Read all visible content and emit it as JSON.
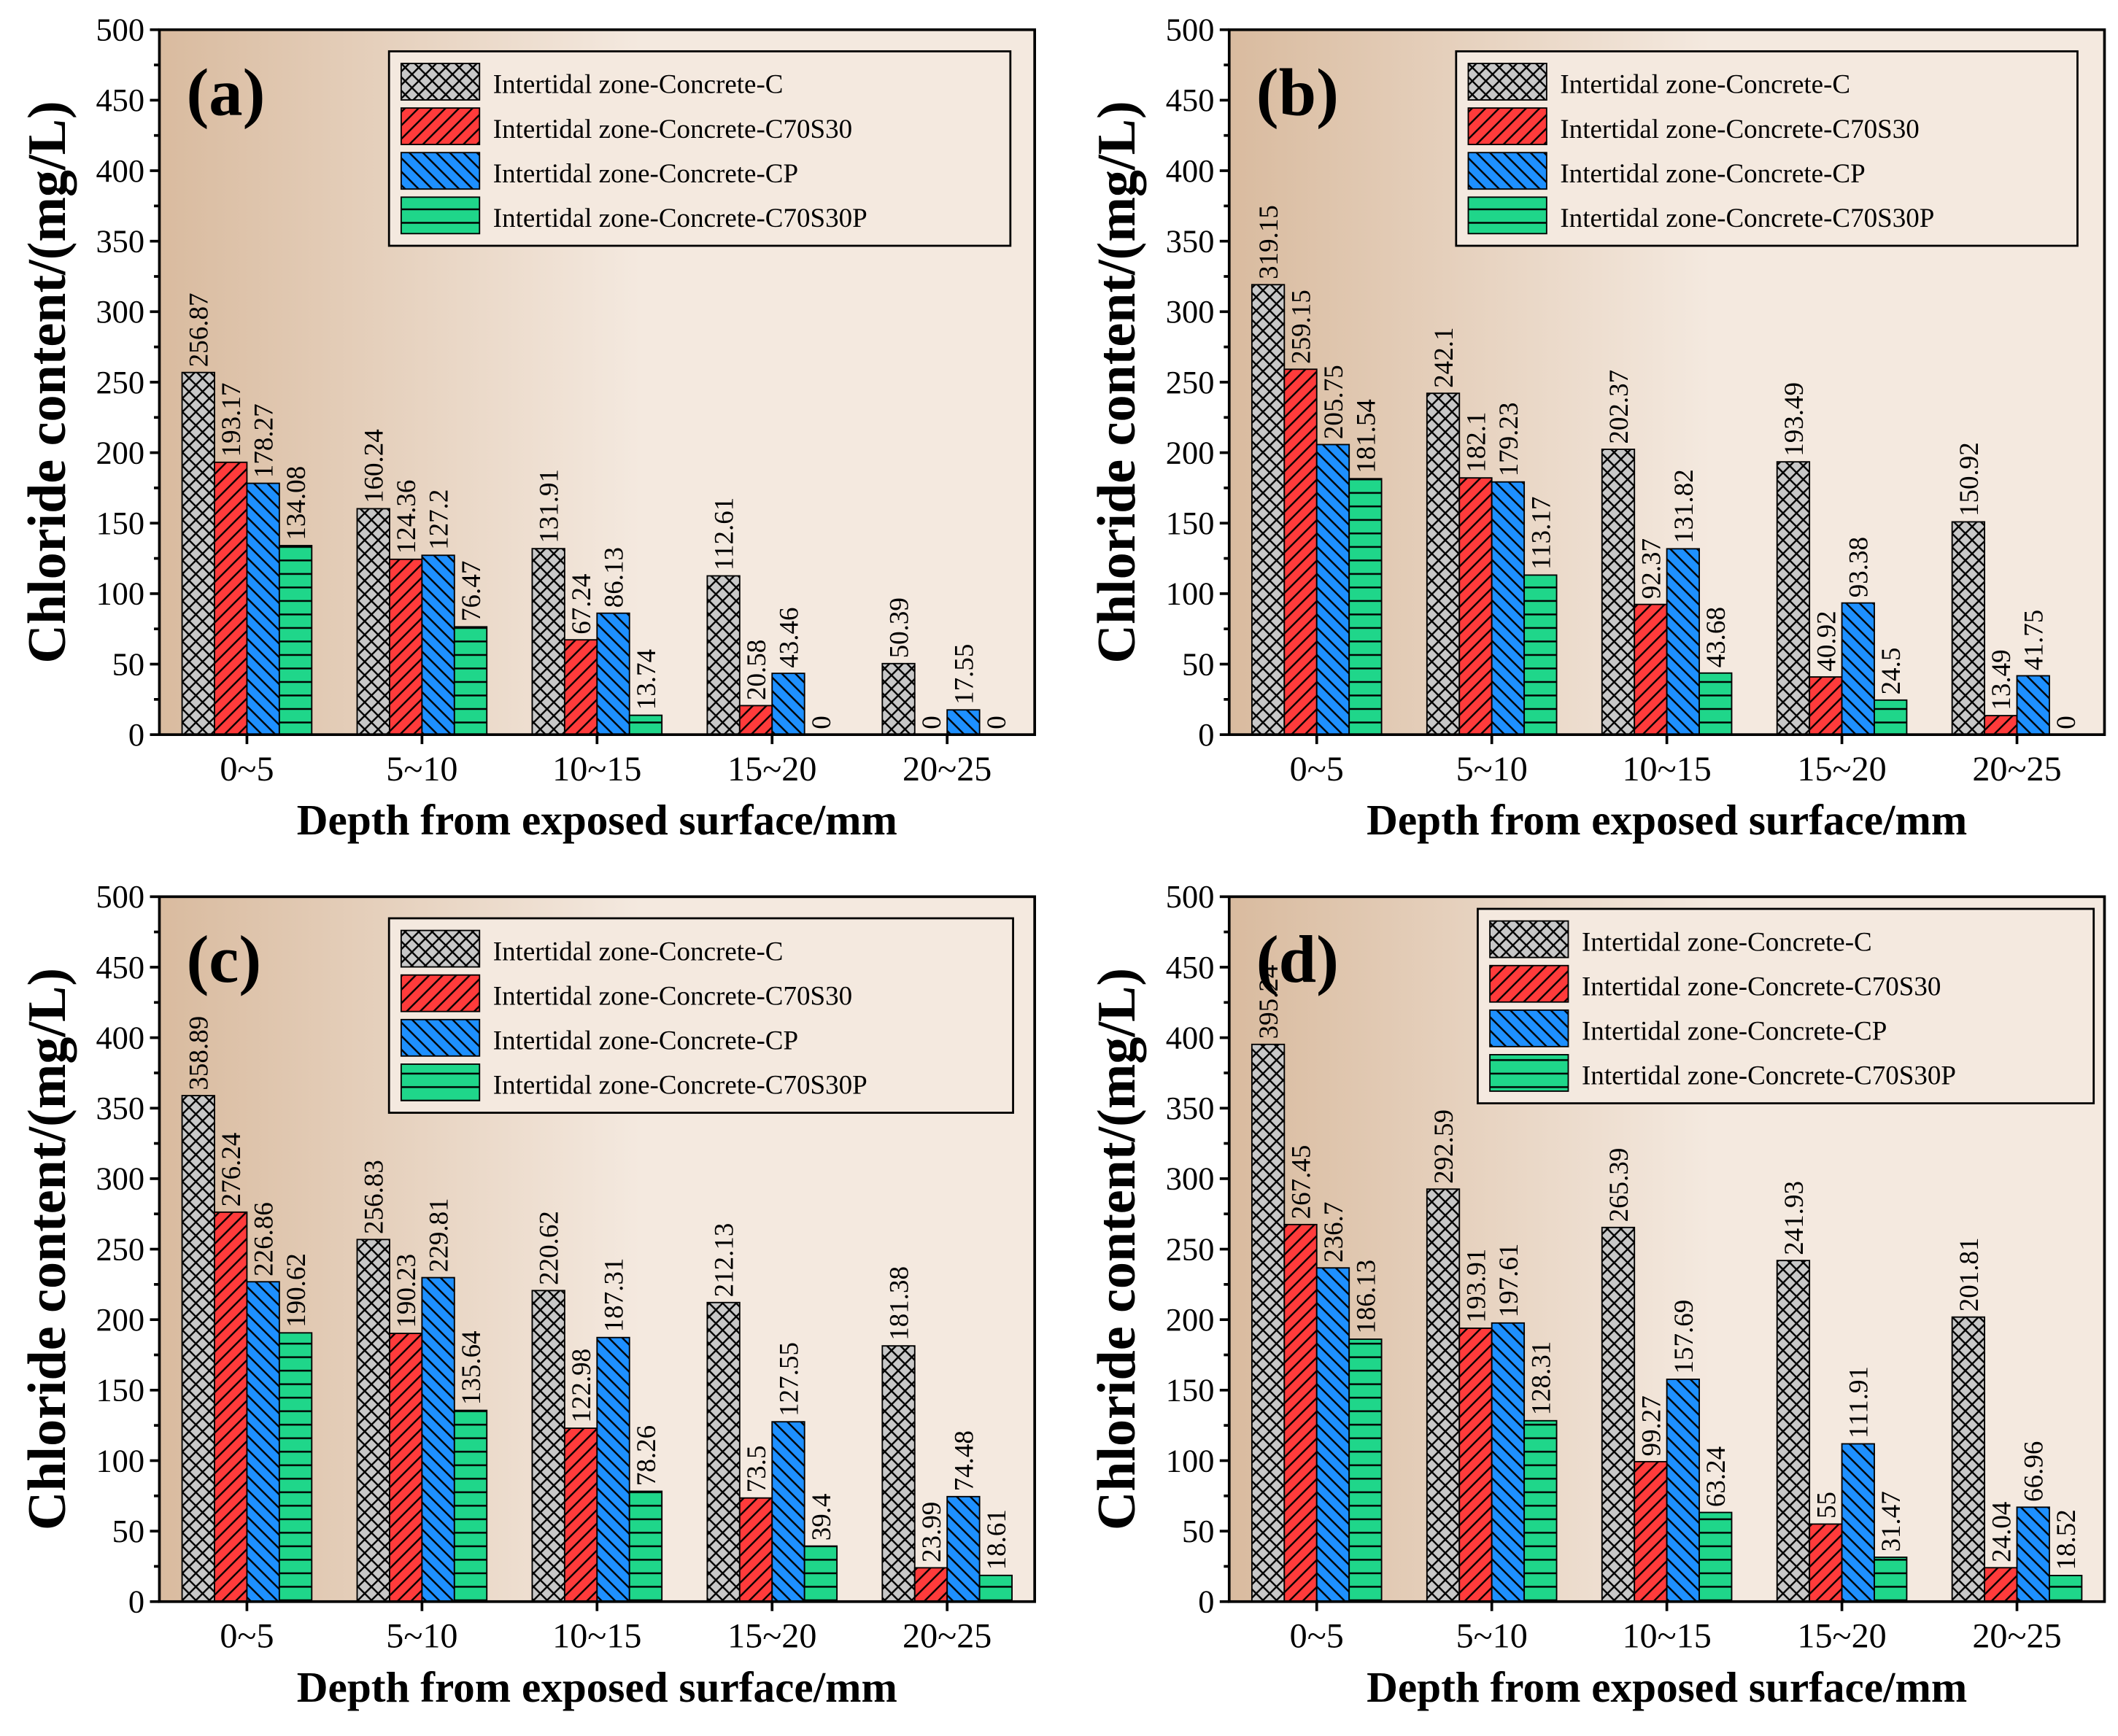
{
  "colors": {
    "background_light": "#f4e9df",
    "background_dark": "#d9bb9f",
    "series": [
      "#c8c8c8",
      "#ff3b3b",
      "#1e90ff",
      "#1fd68a"
    ],
    "hatch": "#000000"
  },
  "chart_data": [
    {
      "type": "bar",
      "panel_label": "(a)",
      "categories": [
        "0~5",
        "5~10",
        "10~15",
        "15~20",
        "20~25"
      ],
      "xlabel": "Depth from exposed surface/mm",
      "ylabel": "Chloride content/(mg/L)",
      "ylim": [
        0,
        500
      ],
      "yticks": [
        "0",
        "50",
        "100",
        "150",
        "200",
        "250",
        "300",
        "350",
        "400",
        "450",
        "500"
      ],
      "legend_position": "top-right",
      "series": [
        {
          "name": "Intertidal zone-Concrete-C",
          "hatch": "crosshatch",
          "values": [
            256.87,
            160.24,
            131.91,
            112.61,
            50.39
          ],
          "labels": [
            "256.87",
            "160.24",
            "131.91",
            "112.61",
            "50.39"
          ]
        },
        {
          "name": "Intertidal zone-Concrete-C70S30",
          "hatch": "forward",
          "values": [
            193.17,
            124.36,
            67.24,
            20.58,
            0
          ],
          "labels": [
            "193.17",
            "124.36",
            "67.24",
            "20.58",
            "0"
          ]
        },
        {
          "name": "Intertidal zone-Concrete-CP",
          "hatch": "backward",
          "values": [
            178.27,
            127.2,
            86.13,
            43.46,
            17.55
          ],
          "labels": [
            "178.27",
            "127.2",
            "86.13",
            "43.46",
            "17.55"
          ]
        },
        {
          "name": "Intertidal zone-Concrete-C70S30P",
          "hatch": "horizontal",
          "values": [
            134.08,
            76.47,
            13.74,
            0,
            0
          ],
          "labels": [
            "134.08",
            "76.47",
            "13.74",
            "0",
            "0"
          ]
        }
      ]
    },
    {
      "type": "bar",
      "panel_label": "(b)",
      "categories": [
        "0~5",
        "5~10",
        "10~15",
        "15~20",
        "20~25"
      ],
      "xlabel": "Depth from exposed surface/mm",
      "ylabel": "Chloride content/(mg/L)",
      "ylim": [
        0,
        500
      ],
      "yticks": [
        "0",
        "50",
        "100",
        "150",
        "200",
        "250",
        "300",
        "350",
        "400",
        "450",
        "500"
      ],
      "legend_position": "top-right",
      "series": [
        {
          "name": "Intertidal zone-Concrete-C",
          "hatch": "crosshatch",
          "values": [
            319.15,
            242.1,
            202.37,
            193.49,
            150.92
          ],
          "labels": [
            "319.15",
            "242.1",
            "202.37",
            "193.49",
            "150.92"
          ]
        },
        {
          "name": "Intertidal zone-Concrete-C70S30",
          "hatch": "forward",
          "values": [
            259.15,
            182.1,
            92.37,
            40.92,
            13.49
          ],
          "labels": [
            "259.15",
            "182.1",
            "92.37",
            "40.92",
            "13.49"
          ]
        },
        {
          "name": "Intertidal zone-Concrete-CP",
          "hatch": "backward",
          "values": [
            205.75,
            179.23,
            131.82,
            93.38,
            41.75
          ],
          "labels": [
            "205.75",
            "179.23",
            "131.82",
            "93.38",
            "41.75"
          ]
        },
        {
          "name": "Intertidal zone-Concrete-C70S30P",
          "hatch": "horizontal",
          "values": [
            181.54,
            113.17,
            43.68,
            24.5,
            0
          ],
          "labels": [
            "181.54",
            "113.17",
            "43.68",
            "24.5",
            "0"
          ]
        }
      ]
    },
    {
      "type": "bar",
      "panel_label": "(c)",
      "categories": [
        "0~5",
        "5~10",
        "10~15",
        "15~20",
        "20~25"
      ],
      "xlabel": "Depth from exposed surface/mm",
      "ylabel": "Chloride content/(mg/L)",
      "ylim": [
        0,
        500
      ],
      "yticks": [
        "0",
        "50",
        "100",
        "150",
        "200",
        "250",
        "300",
        "350",
        "400",
        "450",
        "500"
      ],
      "legend_position": "top-right",
      "series": [
        {
          "name": "Intertidal zone-Concrete-C",
          "hatch": "crosshatch",
          "values": [
            358.89,
            256.83,
            220.62,
            212.13,
            181.38
          ],
          "labels": [
            "358.89",
            "256.83",
            "220.62",
            "212.13",
            "181.38"
          ]
        },
        {
          "name": "Intertidal zone-Concrete-C70S30",
          "hatch": "forward",
          "values": [
            276.24,
            190.23,
            122.98,
            73.5,
            23.99
          ],
          "labels": [
            "276.24",
            "190.23",
            "122.98",
            "73.5",
            "23.99"
          ]
        },
        {
          "name": "Intertidal zone-Concrete-CP",
          "hatch": "backward",
          "values": [
            226.86,
            229.81,
            187.31,
            127.55,
            74.48
          ],
          "labels": [
            "226.86",
            "229.81",
            "187.31",
            "127.55",
            "74.48"
          ]
        },
        {
          "name": "Intertidal zone-Concrete-C70S30P",
          "hatch": "horizontal",
          "values": [
            190.62,
            135.64,
            78.26,
            39.4,
            18.61
          ],
          "labels": [
            "190.62",
            "135.64",
            "78.26",
            "39.4",
            "18.61"
          ]
        }
      ]
    },
    {
      "type": "bar",
      "panel_label": "(d)",
      "categories": [
        "0~5",
        "5~10",
        "10~15",
        "15~20",
        "20~25"
      ],
      "xlabel": "Depth from exposed surface/mm",
      "ylabel": "Chloride content/(mg/L)",
      "ylim": [
        0,
        500
      ],
      "yticks": [
        "0",
        "50",
        "100",
        "150",
        "200",
        "250",
        "300",
        "350",
        "400",
        "450",
        "500"
      ],
      "legend_position": "top-right",
      "series": [
        {
          "name": "Intertidal zone-Concrete-C",
          "hatch": "crosshatch",
          "values": [
            395.24,
            292.59,
            265.39,
            241.93,
            201.81
          ],
          "labels": [
            "395.24",
            "292.59",
            "265.39",
            "241.93",
            "201.81"
          ]
        },
        {
          "name": "Intertidal zone-Concrete-C70S30",
          "hatch": "forward",
          "values": [
            267.45,
            193.91,
            99.27,
            55,
            24.04
          ],
          "labels": [
            "267.45",
            "193.91",
            "99.27",
            "55",
            "24.04"
          ]
        },
        {
          "name": "Intertidal zone-Concrete-CP",
          "hatch": "backward",
          "values": [
            236.7,
            197.61,
            157.69,
            111.91,
            66.96
          ],
          "labels": [
            "236.7",
            "197.61",
            "157.69",
            "111.91",
            "66.96"
          ]
        },
        {
          "name": "Intertidal zone-Concrete-C70S30P",
          "hatch": "horizontal",
          "values": [
            186.13,
            128.31,
            63.24,
            31.47,
            18.52
          ],
          "labels": [
            "186.13",
            "128.31",
            "63.24",
            "31.47",
            "18.52"
          ]
        }
      ]
    }
  ]
}
